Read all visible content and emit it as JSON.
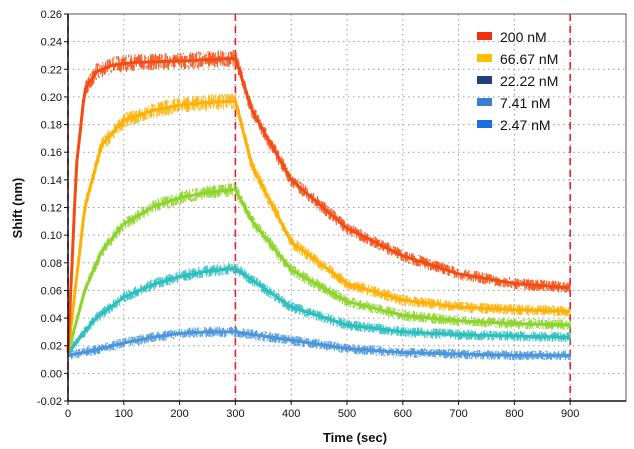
{
  "chart_data": {
    "type": "line",
    "title": "",
    "xlabel": "Time (sec)",
    "ylabel": "Shift (nm)",
    "xlim": [
      0,
      1000
    ],
    "ylim": [
      -0.02,
      0.26
    ],
    "x_ticks": [
      "0",
      "100",
      "200",
      "300",
      "400",
      "500",
      "600",
      "700",
      "800",
      "900"
    ],
    "y_ticks": [
      "-0.02",
      "0.00",
      "0.02",
      "0.04",
      "0.06",
      "0.08",
      "0.10",
      "0.12",
      "0.14",
      "0.16",
      "0.18",
      "0.20",
      "0.22",
      "0.24",
      "0.26"
    ],
    "grid": true,
    "legend_position": "top-right",
    "vertical_markers": [
      0,
      300,
      900
    ],
    "legend": [
      {
        "label": "200 nM",
        "color": "#f03010"
      },
      {
        "label": "66.67 nM",
        "color": "#ffc000"
      },
      {
        "label": "22.22 nM",
        "color": "#1f3f7f"
      },
      {
        "label": "7.41 nM",
        "color": "#3a7fd0"
      },
      {
        "label": "2.47 nM",
        "color": "#1a6fe0"
      }
    ],
    "series": [
      {
        "color": "#f44b12",
        "x": [
          0,
          15,
          30,
          50,
          80,
          120,
          200,
          300,
          330,
          400,
          500,
          600,
          700,
          800,
          900
        ],
        "y": [
          0.015,
          0.15,
          0.205,
          0.218,
          0.223,
          0.225,
          0.226,
          0.228,
          0.19,
          0.14,
          0.105,
          0.085,
          0.072,
          0.065,
          0.062
        ]
      },
      {
        "color": "#ffb000",
        "x": [
          0,
          30,
          60,
          100,
          150,
          200,
          250,
          300,
          330,
          400,
          500,
          600,
          700,
          800,
          900
        ],
        "y": [
          0.015,
          0.12,
          0.165,
          0.183,
          0.19,
          0.194,
          0.196,
          0.197,
          0.15,
          0.095,
          0.065,
          0.053,
          0.048,
          0.046,
          0.045
        ]
      },
      {
        "color": "#8ed42c",
        "x": [
          0,
          30,
          60,
          100,
          150,
          200,
          250,
          300,
          330,
          400,
          500,
          600,
          700,
          800,
          900
        ],
        "y": [
          0.015,
          0.06,
          0.088,
          0.108,
          0.12,
          0.127,
          0.131,
          0.133,
          0.11,
          0.075,
          0.052,
          0.042,
          0.038,
          0.036,
          0.035
        ]
      },
      {
        "color": "#2dbfbf",
        "x": [
          0,
          50,
          100,
          150,
          200,
          250,
          300,
          350,
          400,
          500,
          600,
          700,
          800,
          900
        ],
        "y": [
          0.015,
          0.04,
          0.055,
          0.064,
          0.07,
          0.074,
          0.076,
          0.062,
          0.048,
          0.035,
          0.03,
          0.028,
          0.027,
          0.026
        ]
      },
      {
        "color": "#4a96dc",
        "x": [
          0,
          50,
          100,
          150,
          200,
          250,
          300,
          400,
          500,
          600,
          700,
          800,
          900
        ],
        "y": [
          0.013,
          0.017,
          0.022,
          0.026,
          0.029,
          0.03,
          0.03,
          0.024,
          0.018,
          0.015,
          0.014,
          0.013,
          0.013
        ]
      }
    ]
  }
}
